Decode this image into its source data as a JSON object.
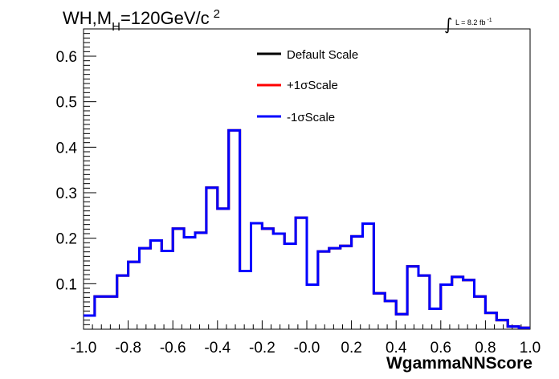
{
  "chart_data": {
    "type": "line",
    "title": {
      "prefix": "WH,M",
      "subscript": "H",
      "suffix": "=120GeV/c",
      "superscript": "2"
    },
    "luminosity": {
      "integral_symbol": "∫",
      "label": "L = 8.2 fb",
      "exponent": "-1"
    },
    "xlabel": "WgammaNNScore",
    "ylabel": "",
    "xlim": [
      -1.0,
      1.0
    ],
    "ylim": [
      0.0,
      0.66
    ],
    "x_ticks": [
      "-1.0",
      "-0.8",
      "-0.6",
      "-0.4",
      "-0.2",
      "-0.0",
      "0.2",
      "0.4",
      "0.6",
      "0.8",
      "1.0"
    ],
    "y_ticks": [
      "0.1",
      "0.2",
      "0.3",
      "0.4",
      "0.5",
      "0.6"
    ],
    "bin_edges": [
      -1.0,
      -0.95,
      -0.9,
      -0.85,
      -0.8,
      -0.75,
      -0.7,
      -0.65,
      -0.6,
      -0.55,
      -0.5,
      -0.45,
      -0.4,
      -0.35,
      -0.3,
      -0.25,
      -0.2,
      -0.15,
      -0.1,
      -0.05,
      0.0,
      0.05,
      0.1,
      0.15,
      0.2,
      0.25,
      0.3,
      0.35,
      0.4,
      0.45,
      0.5,
      0.55,
      0.6,
      0.65,
      0.7,
      0.75,
      0.8,
      0.85,
      0.9,
      0.95,
      1.0
    ],
    "series": [
      {
        "name": "Default Scale",
        "color": "#000000",
        "values": [
          0.03,
          0.072,
          0.072,
          0.118,
          0.148,
          0.178,
          0.195,
          0.172,
          0.221,
          0.202,
          0.212,
          0.311,
          0.265,
          0.437,
          0.128,
          0.233,
          0.221,
          0.21,
          0.188,
          0.245,
          0.098,
          0.171,
          0.178,
          0.183,
          0.204,
          0.232,
          0.079,
          0.062,
          0.033,
          0.138,
          0.118,
          0.045,
          0.098,
          0.115,
          0.108,
          0.072,
          0.036,
          0.02,
          0.006,
          0.003
        ]
      },
      {
        "name": "+1σScale",
        "color": "#ff0000",
        "values": [
          0.03,
          0.072,
          0.072,
          0.118,
          0.148,
          0.178,
          0.195,
          0.172,
          0.221,
          0.202,
          0.212,
          0.311,
          0.265,
          0.437,
          0.128,
          0.233,
          0.221,
          0.21,
          0.188,
          0.245,
          0.098,
          0.171,
          0.178,
          0.183,
          0.204,
          0.232,
          0.079,
          0.062,
          0.033,
          0.138,
          0.118,
          0.045,
          0.098,
          0.115,
          0.108,
          0.072,
          0.036,
          0.02,
          0.006,
          0.003
        ]
      },
      {
        "name": "-1σScale",
        "color": "#0000ff",
        "values": [
          0.03,
          0.072,
          0.072,
          0.118,
          0.148,
          0.178,
          0.195,
          0.172,
          0.221,
          0.202,
          0.212,
          0.311,
          0.265,
          0.437,
          0.128,
          0.233,
          0.221,
          0.21,
          0.188,
          0.245,
          0.098,
          0.171,
          0.178,
          0.183,
          0.204,
          0.232,
          0.079,
          0.062,
          0.033,
          0.138,
          0.118,
          0.045,
          0.098,
          0.115,
          0.108,
          0.072,
          0.036,
          0.02,
          0.006,
          0.003
        ]
      }
    ],
    "grid": false,
    "legend_position": "top-center"
  }
}
